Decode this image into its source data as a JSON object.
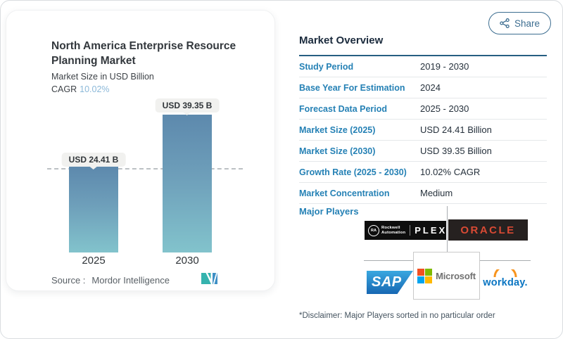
{
  "share": {
    "label": "Share"
  },
  "chart": {
    "title": "North America Enterprise Resource Planning Market",
    "subtitle": "Market Size in USD Billion",
    "cagr_label": "CAGR",
    "cagr_value": "10.02%",
    "bars": [
      {
        "year": "2025",
        "label": "USD 24.41 B"
      },
      {
        "year": "2030",
        "label": "USD 39.35 B"
      }
    ],
    "source_label": "Source :",
    "source_value": "Mordor Intelligence"
  },
  "chart_data": {
    "type": "bar",
    "title": "North America Enterprise Resource Planning Market",
    "ylabel": "Market Size in USD Billion",
    "categories": [
      "2025",
      "2030"
    ],
    "values": [
      24.41,
      39.35
    ],
    "data_labels": [
      "USD 24.41 B",
      "USD 39.35 B"
    ],
    "cagr_percent": 10.02,
    "ylim": [
      0,
      45
    ],
    "grid": false,
    "legend": false,
    "annotations": [
      "dashed horizontal reference line at 2025 value (24.41)"
    ]
  },
  "overview": {
    "heading": "Market Overview",
    "rows": [
      {
        "label": "Study Period",
        "value": "2019 - 2030"
      },
      {
        "label": "Base Year For Estimation",
        "value": "2024"
      },
      {
        "label": "Forecast Data Period",
        "value": "2025 - 2030"
      },
      {
        "label": "Market Size (2025)",
        "value": "USD 24.41 Billion"
      },
      {
        "label": "Market Size (2030)",
        "value": "USD 39.35 Billion"
      },
      {
        "label": "Growth Rate (2025 - 2030)",
        "value": "10.02% CAGR"
      },
      {
        "label": "Market Concentration",
        "value": "Medium"
      }
    ],
    "major_players_label": "Major Players",
    "players": [
      "Rockwell Automation",
      "Plex",
      "Oracle",
      "SAP",
      "Microsoft",
      "Workday"
    ],
    "disclaimer": "*Disclaimer: Major Players sorted in no particular order"
  },
  "logos": {
    "rockwell_badge": "RA",
    "rockwell_line1": "Rockwell",
    "rockwell_line2": "Automation",
    "plex": "PLEX",
    "oracle": "ORACLE",
    "sap": "SAP",
    "microsoft": "Microsoft",
    "workday": "workday."
  },
  "colors": {
    "accent_blue": "#2581b5",
    "heading_navy": "#1b2b3d",
    "bar_gradient_top": "#5d89ad",
    "bar_gradient_bottom": "#82c3cc",
    "cagr_value_blue": "#8cb9d9",
    "share_blue": "#3c6d90",
    "table_top_border": "#265f82",
    "oracle_red": "#d94a34",
    "workday_blue": "#0a75c2",
    "workday_orange": "#f7941e",
    "sap_blue_top": "#3aa8e0",
    "sap_blue_bottom": "#1767b3",
    "ms_red": "#f25022",
    "ms_green": "#7fba00",
    "ms_blue": "#00a4ef",
    "ms_yellow": "#ffb900"
  }
}
